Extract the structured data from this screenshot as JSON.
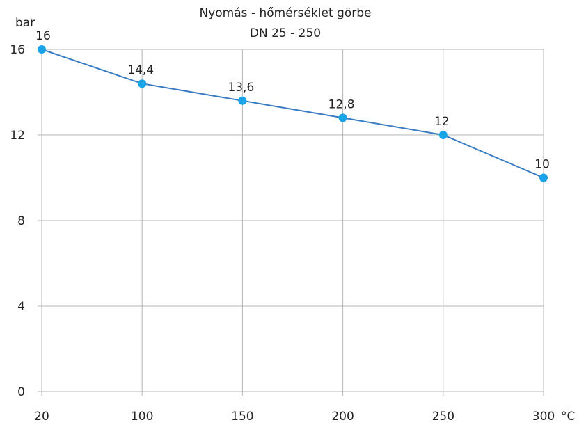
{
  "chart_data": {
    "type": "line",
    "title": "Nyomás - hőmérséklet görbe",
    "subtitle": "DN 25 - 250",
    "ylabel": "bar",
    "xlabel": "°C",
    "categories": [
      "20",
      "100",
      "150",
      "200",
      "250",
      "300"
    ],
    "series": [
      {
        "values": [
          16,
          14.4,
          13.6,
          12.8,
          12,
          10
        ]
      }
    ],
    "data_labels": [
      "16",
      "14,4",
      "13,6",
      "12,8",
      "12",
      "10"
    ],
    "ylim": [
      0,
      16
    ],
    "yticks": [
      0,
      4,
      8,
      12,
      16
    ],
    "grid": true,
    "line_color": "#3a7cc3",
    "marker_color": "#1aa3e8",
    "grid_color": "#b5b5b5"
  }
}
